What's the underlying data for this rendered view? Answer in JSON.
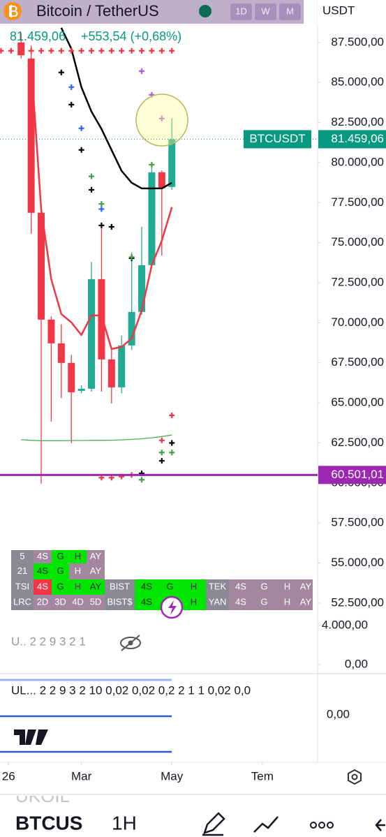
{
  "header": {
    "symbol": "Bitcoin / TetherUS",
    "intervals": [
      "1D",
      "W",
      "M"
    ],
    "currency": "USDT",
    "price": "81.459,06",
    "change": "+553,54 (+0,68%)"
  },
  "chart_data": {
    "type": "candlestick",
    "x": [
      0,
      1,
      2,
      3,
      4,
      5,
      6,
      7,
      8,
      9,
      10,
      11,
      12,
      13,
      14,
      15
    ],
    "open": [
      87500,
      86500,
      76866,
      70197,
      68715,
      67495,
      65750,
      65882,
      72725,
      67713,
      65969,
      68584,
      70677,
      73597,
      79393,
      78477
    ],
    "high": [
      88100,
      87300,
      77000,
      70400,
      69900,
      68000,
      66100,
      73800,
      75900,
      68500,
      69200,
      74400,
      76000,
      79900,
      79500,
      82749
    ],
    "low": [
      86500,
      75560,
      59955,
      63834,
      65300,
      62483,
      65600,
      65700,
      65700,
      64967,
      65600,
      68300,
      70500,
      73400,
      74200,
      78300
    ],
    "close": [
      86700,
      76866,
      70197,
      68715,
      67495,
      65664,
      65880,
      72725,
      67713,
      65969,
      68584,
      70677,
      73597,
      79393,
      78390,
      81459.06
    ],
    "up_color": "#22ab94",
    "down_color": "#f23645",
    "lines": [
      {
        "color": "#f23645",
        "values": [
          null,
          86236,
          77083,
          72725,
          70546,
          70023,
          69238,
          70459,
          70459,
          68366,
          68497,
          69020,
          70764,
          73597,
          75123,
          77215
        ]
      },
      {
        "color": "#000000",
        "values": [
          null,
          null,
          null,
          null,
          88415,
          87108,
          84711,
          83185,
          82095,
          80787,
          79480,
          78739,
          78390,
          78390,
          78390,
          78739
        ]
      },
      {
        "color": "#4caf50",
        "values": [
          62700,
          62660,
          62640,
          62640,
          62640,
          62650,
          62650,
          62660,
          62660,
          62670,
          62690,
          62720,
          62760,
          62820,
          62900,
          62990
        ]
      }
    ],
    "markers": [
      {
        "color": "#f23645",
        "x": [
          -2,
          -1,
          0,
          1,
          2,
          3,
          4,
          5,
          6,
          7,
          8,
          9,
          10,
          11,
          12,
          13,
          14,
          15
        ],
        "values": [
          86980,
          86980,
          86980,
          86980,
          86980,
          86980,
          86980,
          86980,
          86980,
          86980,
          86980,
          86980,
          86980,
          86980,
          86980,
          86980,
          86980,
          86980
        ]
      },
      {
        "color": "#000000",
        "x": [
          4,
          5,
          6,
          7,
          8,
          9,
          11,
          12,
          14,
          15
        ],
        "values": [
          85630,
          83620,
          80790,
          78300,
          76080,
          75990,
          74030,
          60600,
          61380,
          62500
        ]
      },
      {
        "color": "#b35cd6",
        "x": [
          12,
          13,
          14
        ],
        "values": [
          85710,
          84230,
          82750
        ]
      },
      {
        "color": "#2962ff",
        "x": [
          5,
          6,
          8
        ],
        "values": [
          84710,
          82140,
          77100
        ]
      },
      {
        "color": "#43a047",
        "x": [
          7,
          8,
          11,
          13,
          12,
          14,
          15
        ],
        "values": [
          79140,
          77420,
          74100,
          79870,
          60200,
          61900,
          61900
        ]
      },
      {
        "color": "#f23645",
        "x": [
          8,
          9,
          10,
          11,
          14,
          15
        ],
        "values": [
          60330,
          60330,
          60400,
          60500,
          62660,
          64220
        ]
      }
    ],
    "xlim": [
      -2.1,
      29.5
    ],
    "xticks": [
      {
        "value": -1.25,
        "label": "26"
      },
      {
        "value": 6,
        "label": "Mar"
      },
      {
        "value": 15,
        "label": "May"
      },
      {
        "value": 24,
        "label": "Tem"
      }
    ],
    "ylim": [
      51800,
      90150
    ],
    "yticks": [
      {
        "value": 87500,
        "label": "87.500,00"
      },
      {
        "value": 85000,
        "label": "85.000,00"
      },
      {
        "value": 82500,
        "label": "82.500,00"
      },
      {
        "value": 80000,
        "label": "80.000,00"
      },
      {
        "value": 77500,
        "label": "77.500,00"
      },
      {
        "value": 75000,
        "label": "75.000,00"
      },
      {
        "value": 72500,
        "label": "72.500,00"
      },
      {
        "value": 70000,
        "label": "70.000,00"
      },
      {
        "value": 67500,
        "label": "67.500,00"
      },
      {
        "value": 65000,
        "label": "65.000,00"
      },
      {
        "value": 62500,
        "label": "62.500,00"
      },
      {
        "value": 60000,
        "label": "60.000,00"
      },
      {
        "value": 57500,
        "label": "57.500,00"
      },
      {
        "value": 55000,
        "label": "55.000,00"
      },
      {
        "value": 52500,
        "label": "52.500,00"
      }
    ],
    "price_tags": [
      {
        "label": "BTCUSDT",
        "value": 81459.06,
        "value_label": "81.459,06",
        "color": "#089981"
      },
      {
        "value": 60501.01,
        "value_label": "60.501,01",
        "color": "#9c27b0"
      }
    ]
  },
  "table": {
    "rows": [
      [
        {
          "text": "5",
          "color": "#8a8a96"
        },
        {
          "text": "4S",
          "color": "#a3879f"
        },
        {
          "text": "G",
          "color": "#00e600"
        },
        {
          "text": "H",
          "color": "#00e600"
        },
        {
          "text": "AY",
          "color": "#a3879f"
        }
      ],
      [
        {
          "text": "21",
          "color": "#8a8a96"
        },
        {
          "text": "4S",
          "color": "#00e600"
        },
        {
          "text": "G",
          "color": "#00e600"
        },
        {
          "text": "H",
          "color": "#a3879f"
        },
        {
          "text": "AY",
          "color": "#a3879f"
        }
      ],
      [
        {
          "text": "TSI",
          "color": "#8a8a96"
        },
        {
          "text": "4S",
          "color": "#f23645"
        },
        {
          "text": "G",
          "color": "#00e600"
        },
        {
          "text": "H",
          "color": "#00e600"
        },
        {
          "text": "AY",
          "color": "#00e600"
        },
        {
          "text": "BIST",
          "color": "#8a8a96"
        },
        {
          "text": "4S",
          "color": "#00e600"
        },
        {
          "text": "G",
          "color": "#00e600"
        },
        {
          "text": "H",
          "color": "#00e600"
        },
        {
          "text": "TEK",
          "color": "#8a8a96"
        },
        {
          "text": "4S",
          "color": "#a3879f"
        },
        {
          "text": "G",
          "color": "#a3879f"
        },
        {
          "text": "H",
          "color": "#a3879f"
        },
        {
          "text": "AY",
          "color": "#a3879f"
        }
      ],
      [
        {
          "text": "LRC",
          "color": "#8a8a96"
        },
        {
          "text": "2D",
          "color": "#a3879f"
        },
        {
          "text": "3D",
          "color": "#a3879f"
        },
        {
          "text": "4D",
          "color": "#a3879f"
        },
        {
          "text": "5D",
          "color": "#a3879f"
        },
        {
          "text": "BIST$",
          "color": "#8a8a96"
        },
        {
          "text": "4S",
          "color": "#00e600"
        },
        {
          "color": "#00e600"
        },
        {
          "text": "H",
          "color": "#00e600"
        },
        {
          "text": "YAN",
          "color": "#8a8a96"
        },
        {
          "text": "4S",
          "color": "#a3879f"
        },
        {
          "text": "G",
          "color": "#a3879f"
        },
        {
          "text": "H",
          "color": "#a3879f"
        },
        {
          "text": "AY",
          "color": "#a3879f"
        }
      ]
    ]
  },
  "indicator_1": {
    "label": "U.. 2 2 9 3 2 1",
    "ylim": [
      -930,
      4790
    ],
    "yticks": [
      {
        "value": 4000,
        "label": "4.000,00"
      },
      {
        "value": 0,
        "label": "0,00"
      }
    ]
  },
  "indicator_2": {
    "label": "UL... 2 2 9 3 2 10 0,02 0,02 0,2 2 1 1 0,02 0,0",
    "yticks": [
      {
        "value": 0,
        "label": "0,00"
      }
    ]
  },
  "bottom_bar": {
    "previous": "UKOIL",
    "symbol": "BTCUS",
    "interval": "1H"
  }
}
